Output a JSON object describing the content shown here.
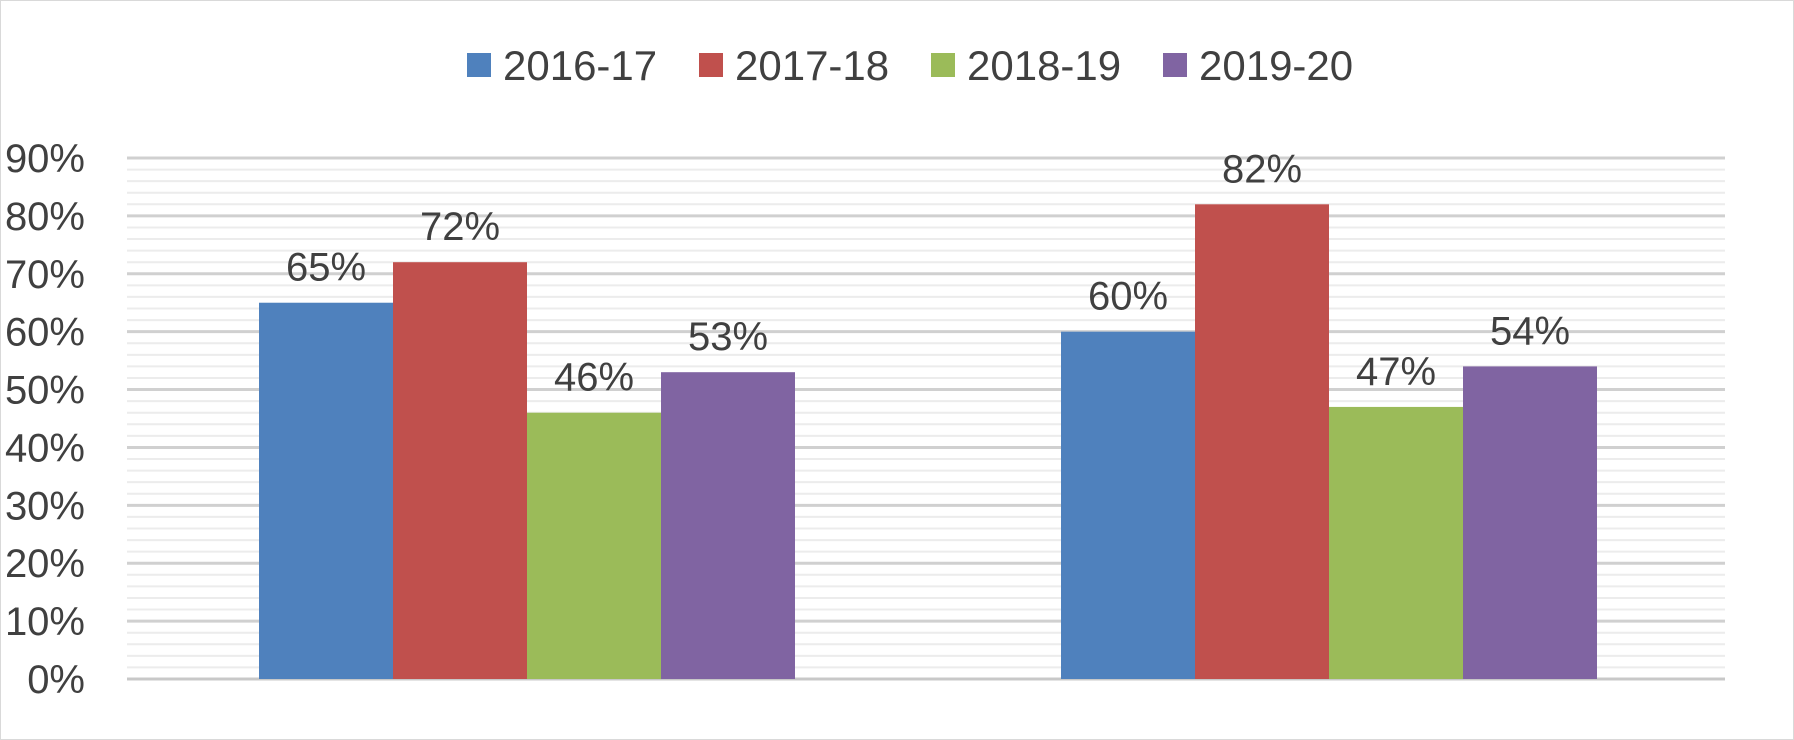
{
  "chart_data": {
    "type": "bar",
    "categories": [
      "",
      ""
    ],
    "series": [
      {
        "name": "2016-17",
        "color": "#4F81BD",
        "values": [
          65,
          60
        ],
        "labels": [
          "65%",
          "60%"
        ]
      },
      {
        "name": "2017-18",
        "color": "#C0504D",
        "values": [
          72,
          82
        ],
        "labels": [
          "72%",
          "82%"
        ]
      },
      {
        "name": "2018-19",
        "color": "#9BBB59",
        "values": [
          46,
          47
        ],
        "labels": [
          "46%",
          "47%"
        ]
      },
      {
        "name": "2019-20",
        "color": "#8064A2",
        "values": [
          53,
          54
        ],
        "labels": [
          "53%",
          "54%"
        ]
      }
    ],
    "y_ticks": [
      "0%",
      "10%",
      "20%",
      "30%",
      "40%",
      "50%",
      "60%",
      "70%",
      "80%",
      "90%"
    ],
    "ylim": [
      0,
      90
    ],
    "y_unit": "%",
    "title": "",
    "xlabel": "",
    "ylabel": "",
    "grid": true,
    "legend_position": "top-center"
  }
}
